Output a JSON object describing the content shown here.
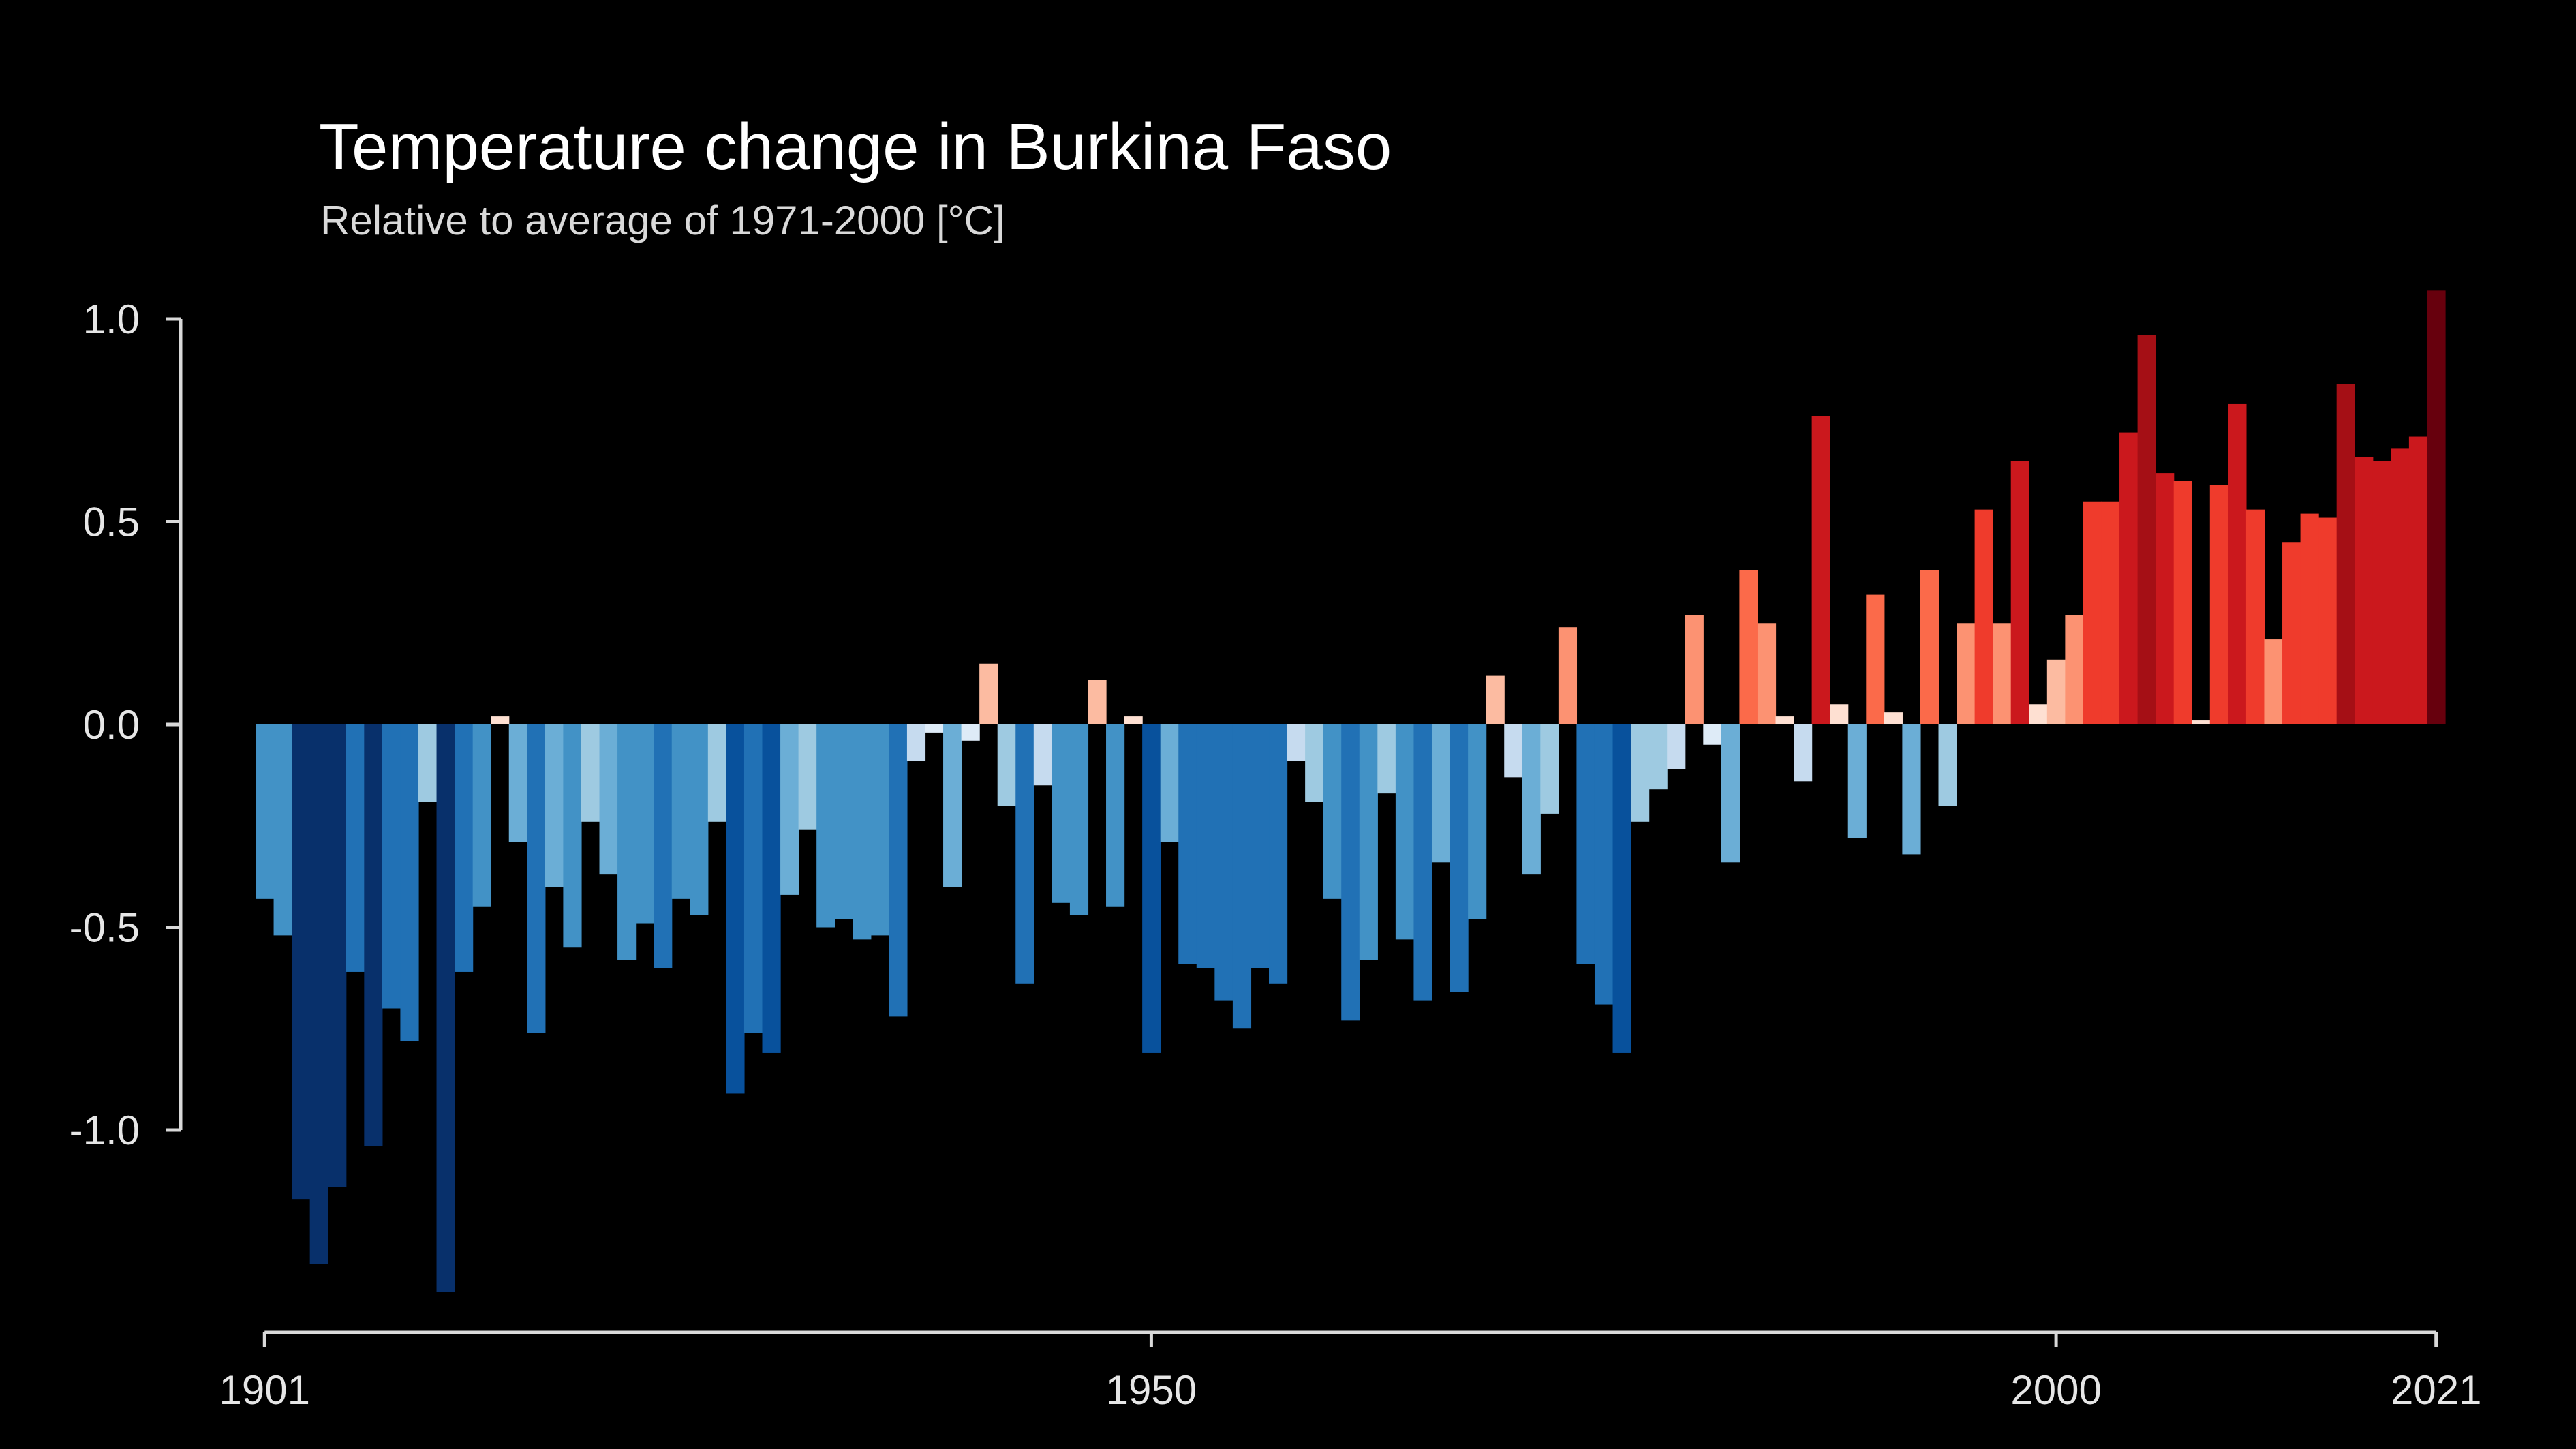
{
  "chart_data": {
    "type": "bar",
    "title": "Temperature change in Burkina Faso",
    "subtitle": "Relative to average of 1971-2000  [°C]",
    "xlabel": "",
    "ylabel": "",
    "x_start": 1901,
    "x_end": 2021,
    "ylim": [
      -1.45,
      1.1
    ],
    "y_ticks": [
      {
        "value": 1.0,
        "label": "1.0"
      },
      {
        "value": 0.5,
        "label": "0.5"
      },
      {
        "value": 0.0,
        "label": "0.0"
      },
      {
        "value": -0.5,
        "label": "-0.5"
      },
      {
        "value": -1.0,
        "label": "-1.0"
      }
    ],
    "x_ticks": [
      {
        "value": 1901,
        "label": "1901"
      },
      {
        "value": 1950,
        "label": "1950"
      },
      {
        "value": 2000,
        "label": "2000"
      },
      {
        "value": 2021,
        "label": "2021"
      }
    ],
    "grid": false,
    "legend": "none",
    "color_scale": {
      "cold": [
        "#08306b",
        "#08519c",
        "#2171b5",
        "#4292c6",
        "#6baed6",
        "#9ecae1",
        "#c6dbef",
        "#deebf7"
      ],
      "warm": [
        "#fee0d2",
        "#fcbba1",
        "#fc9272",
        "#fb6a4a",
        "#ef3b2c",
        "#cb181d",
        "#a50f15",
        "#67000d"
      ]
    },
    "years": [
      1901,
      1902,
      1903,
      1904,
      1905,
      1906,
      1907,
      1908,
      1909,
      1910,
      1911,
      1912,
      1913,
      1914,
      1915,
      1916,
      1917,
      1918,
      1919,
      1920,
      1921,
      1922,
      1923,
      1924,
      1925,
      1926,
      1927,
      1928,
      1929,
      1930,
      1931,
      1932,
      1933,
      1934,
      1935,
      1936,
      1937,
      1938,
      1939,
      1940,
      1941,
      1942,
      1943,
      1944,
      1945,
      1946,
      1947,
      1948,
      1949,
      1950,
      1951,
      1952,
      1953,
      1954,
      1955,
      1956,
      1957,
      1958,
      1959,
      1960,
      1961,
      1962,
      1963,
      1964,
      1965,
      1966,
      1967,
      1968,
      1969,
      1970,
      1971,
      1972,
      1973,
      1974,
      1975,
      1976,
      1977,
      1978,
      1979,
      1980,
      1981,
      1982,
      1983,
      1984,
      1985,
      1986,
      1987,
      1988,
      1989,
      1990,
      1991,
      1992,
      1993,
      1994,
      1995,
      1996,
      1997,
      1998,
      1999,
      2000,
      2001,
      2002,
      2003,
      2004,
      2005,
      2006,
      2007,
      2008,
      2009,
      2010,
      2011,
      2012,
      2013,
      2014,
      2015,
      2016,
      2017,
      2018,
      2019,
      2020,
      2021
    ],
    "values": [
      -0.43,
      -0.52,
      -1.17,
      -1.33,
      -1.14,
      -0.61,
      -1.04,
      -0.7,
      -0.78,
      -0.19,
      -1.4,
      -0.61,
      -0.45,
      0.02,
      -0.29,
      -0.76,
      -0.4,
      -0.55,
      -0.24,
      -0.37,
      -0.58,
      -0.49,
      -0.6,
      -0.43,
      -0.47,
      -0.24,
      -0.91,
      -0.76,
      -0.81,
      -0.42,
      -0.26,
      -0.5,
      -0.48,
      -0.53,
      -0.52,
      -0.72,
      -0.09,
      -0.02,
      -0.4,
      -0.04,
      0.15,
      -0.2,
      -0.64,
      -0.15,
      -0.44,
      -0.47,
      0.11,
      -0.45,
      0.02,
      -0.81,
      -0.29,
      -0.59,
      -0.6,
      -0.68,
      -0.75,
      -0.6,
      -0.64,
      -0.09,
      -0.19,
      -0.43,
      -0.73,
      -0.58,
      -0.17,
      -0.53,
      -0.68,
      -0.34,
      -0.66,
      -0.48,
      0.12,
      -0.13,
      -0.37,
      -0.22,
      0.24,
      -0.59,
      -0.69,
      -0.81,
      -0.24,
      -0.16,
      -0.11,
      0.27,
      -0.05,
      -0.34,
      0.38,
      0.25,
      0.02,
      -0.14,
      0.76,
      0.05,
      -0.28,
      0.32,
      0.03,
      -0.32,
      0.38,
      -0.2,
      0.25,
      0.53,
      0.25,
      0.65,
      0.05,
      0.16,
      0.27,
      0.55,
      0.55,
      0.72,
      0.96,
      0.62,
      0.6,
      0.01,
      0.59,
      0.79,
      0.53,
      0.21,
      0.45,
      0.52,
      0.51,
      0.84,
      0.66,
      0.65,
      0.68,
      0.71,
      1.07
    ]
  }
}
